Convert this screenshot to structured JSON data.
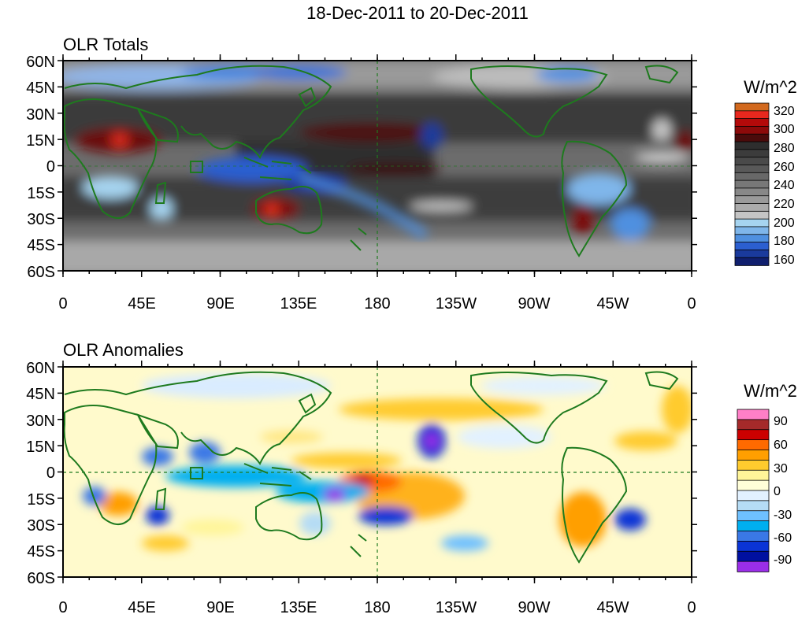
{
  "title": "18-Dec-2011 to 20-Dec-2011",
  "axes": {
    "lat_labels": [
      "60N",
      "45N",
      "30N",
      "15N",
      "0",
      "15S",
      "30S",
      "45S",
      "60S"
    ],
    "lon_labels": [
      "0",
      "45E",
      "90E",
      "135E",
      "180",
      "135W",
      "90W",
      "45W",
      "0"
    ]
  },
  "panels": {
    "totals": {
      "title": "OLR Totals",
      "units": "W/m^2",
      "colorbar": {
        "labels": [
          "320",
          "300",
          "280",
          "260",
          "240",
          "220",
          "200",
          "180",
          "160"
        ],
        "colors": [
          "#d2691e",
          "#e8281e",
          "#b40a0a",
          "#8c0a0a",
          "#4a0b0b",
          "#2e2e2e",
          "#3c3c3c",
          "#4a4a4a",
          "#595959",
          "#686868",
          "#787878",
          "#888888",
          "#9a9a9a",
          "#ababab",
          "#c5c5c5",
          "#a6d4f0",
          "#7fb6ea",
          "#4f90e0",
          "#2c5fd0",
          "#1a3a9c",
          "#101f6e"
        ]
      }
    },
    "anomalies": {
      "title": "OLR Anomalies",
      "units": "W/m^2",
      "colorbar": {
        "labels": [
          "90",
          "60",
          "30",
          "0",
          "-30",
          "-60",
          "-90"
        ],
        "colors": [
          "#ff7fc7",
          "#a52a2a",
          "#cc0000",
          "#ff6a00",
          "#ff9f00",
          "#ffcb2e",
          "#fff599",
          "#fffed8",
          "#e2f1ff",
          "#b5dcf5",
          "#6ec0ff",
          "#00aff0",
          "#3a78e6",
          "#0a34d6",
          "#0010a0",
          "#9a2ee8"
        ]
      }
    }
  },
  "colors": {
    "coastline": "#1e7a1e",
    "background": "#ffffff"
  }
}
